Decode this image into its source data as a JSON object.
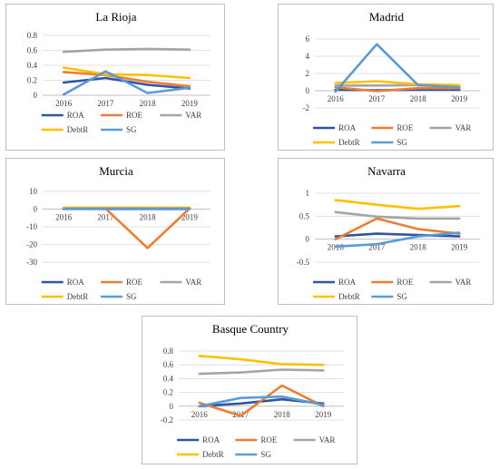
{
  "chart_data": [
    {
      "type": "line",
      "title": "La Rioja",
      "categories": [
        "2016",
        "2017",
        "2018",
        "2019"
      ],
      "ylim": [
        0,
        0.8
      ],
      "yticks": [
        "0",
        "0.2",
        "0.4",
        "0.6",
        "0.8"
      ],
      "grid": true,
      "legend": "bottom",
      "series": [
        {
          "name": "ROA",
          "values": [
            0.17,
            0.23,
            0.14,
            0.09
          ]
        },
        {
          "name": "ROE",
          "values": [
            0.31,
            0.27,
            0.18,
            0.12
          ]
        },
        {
          "name": "VAR",
          "values": [
            0.58,
            0.61,
            0.62,
            0.61
          ]
        },
        {
          "name": "DebtR",
          "values": [
            0.37,
            0.28,
            0.27,
            0.23
          ]
        },
        {
          "name": "SG",
          "values": [
            0.01,
            0.32,
            0.03,
            0.1
          ]
        }
      ]
    },
    {
      "type": "line",
      "title": "Madrid",
      "categories": [
        "2016",
        "2017",
        "2018",
        "2019"
      ],
      "ylim": [
        -2,
        6
      ],
      "yticks": [
        "-2",
        "0",
        "2",
        "4",
        "6"
      ],
      "grid": true,
      "legend": "bottom",
      "series": [
        {
          "name": "ROA",
          "values": [
            0.1,
            0.05,
            0.1,
            0.1
          ]
        },
        {
          "name": "ROE",
          "values": [
            0.4,
            -0.05,
            0.3,
            0.3
          ]
        },
        {
          "name": "VAR",
          "values": [
            0.6,
            0.6,
            0.65,
            0.6
          ]
        },
        {
          "name": "DebtR",
          "values": [
            0.9,
            1.1,
            0.75,
            0.65
          ]
        },
        {
          "name": "SG",
          "values": [
            -0.1,
            5.4,
            0.65,
            0.4
          ]
        }
      ]
    },
    {
      "type": "line",
      "title": "Murcia",
      "categories": [
        "2016",
        "2017",
        "2018",
        "2019"
      ],
      "ylim": [
        -30,
        10
      ],
      "yticks": [
        "-30",
        "-20",
        "-10",
        "0",
        "10"
      ],
      "grid": true,
      "legend": "bottom",
      "series": [
        {
          "name": "ROA",
          "values": [
            0.1,
            0.1,
            0.1,
            0.1
          ]
        },
        {
          "name": "ROE",
          "values": [
            0.3,
            0.3,
            -22,
            0.3
          ]
        },
        {
          "name": "VAR",
          "values": [
            0.6,
            0.6,
            0.6,
            0.6
          ]
        },
        {
          "name": "DebtR",
          "values": [
            0.8,
            0.8,
            0.8,
            0.8
          ]
        },
        {
          "name": "SG",
          "values": [
            0.2,
            0.3,
            0.2,
            0.3
          ]
        }
      ]
    },
    {
      "type": "line",
      "title": "Navarra",
      "categories": [
        "2016",
        "2017",
        "2018",
        "2019"
      ],
      "ylim": [
        -0.5,
        1
      ],
      "yticks": [
        "-0.5",
        "0",
        "0.5",
        "1"
      ],
      "grid": true,
      "legend": "bottom",
      "series": [
        {
          "name": "ROA",
          "values": [
            0.06,
            0.12,
            0.09,
            0.06
          ]
        },
        {
          "name": "ROE",
          "values": [
            0.0,
            0.45,
            0.22,
            0.12
          ]
        },
        {
          "name": "VAR",
          "values": [
            0.59,
            0.49,
            0.45,
            0.45
          ]
        },
        {
          "name": "DebtR",
          "values": [
            0.85,
            0.75,
            0.66,
            0.72
          ]
        },
        {
          "name": "SG",
          "values": [
            -0.16,
            -0.11,
            0.06,
            0.14
          ]
        }
      ]
    },
    {
      "type": "line",
      "title": "Basque Country",
      "categories": [
        "2016",
        "2017",
        "2018",
        "2019"
      ],
      "ylim": [
        -0.2,
        0.8
      ],
      "yticks": [
        "-0.2",
        "0",
        "0.2",
        "0.4",
        "0.6",
        "0.8"
      ],
      "grid": true,
      "legend": "bottom",
      "series": [
        {
          "name": "ROA",
          "values": [
            0.0,
            0.04,
            0.1,
            0.04
          ]
        },
        {
          "name": "ROE",
          "values": [
            0.05,
            -0.14,
            0.3,
            0.0
          ]
        },
        {
          "name": "VAR",
          "values": [
            0.47,
            0.49,
            0.53,
            0.52
          ]
        },
        {
          "name": "DebtR",
          "values": [
            0.73,
            0.68,
            0.61,
            0.6
          ]
        },
        {
          "name": "SG",
          "values": [
            0.0,
            0.12,
            0.14,
            0.02
          ]
        }
      ]
    }
  ],
  "colors": {
    "ROA": "#4472c4",
    "ROE": "#ed7d31",
    "VAR": "#a5a5a5",
    "DebtR": "#ffc000",
    "SG": "#5b9bd5",
    "ROA_dark": "#2f55a4",
    "grid": "#d9d9d9",
    "axis": "#bfbfbf",
    "text": "#404040"
  }
}
